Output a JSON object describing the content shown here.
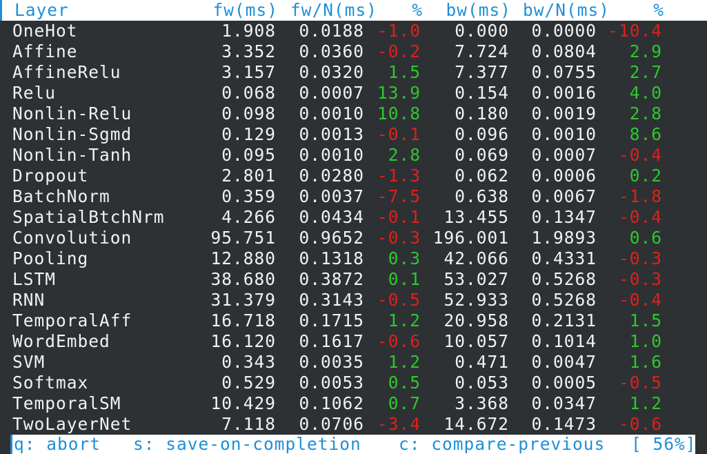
{
  "header": {
    "layer": "Layer",
    "fw": "fw(ms)",
    "fwn": "fw/N(ms)",
    "pct1": "%",
    "bw": "bw(ms)",
    "bwn": "bw/N(ms)",
    "pct2": "%"
  },
  "rows": [
    {
      "layer": "OneHot",
      "fw": "1.908",
      "fwn": "0.0188",
      "pct1": "-1.0",
      "bw": "0.000",
      "bwn": "0.0000",
      "pct2": "-10.4"
    },
    {
      "layer": "Affine",
      "fw": "3.352",
      "fwn": "0.0360",
      "pct1": "-0.2",
      "bw": "7.724",
      "bwn": "0.0804",
      "pct2": "2.9"
    },
    {
      "layer": "AffineRelu",
      "fw": "3.157",
      "fwn": "0.0320",
      "pct1": "1.5",
      "bw": "7.377",
      "bwn": "0.0755",
      "pct2": "2.7"
    },
    {
      "layer": "Relu",
      "fw": "0.068",
      "fwn": "0.0007",
      "pct1": "13.9",
      "bw": "0.154",
      "bwn": "0.0016",
      "pct2": "4.0"
    },
    {
      "layer": "Nonlin-Relu",
      "fw": "0.098",
      "fwn": "0.0010",
      "pct1": "10.8",
      "bw": "0.180",
      "bwn": "0.0019",
      "pct2": "2.8"
    },
    {
      "layer": "Nonlin-Sgmd",
      "fw": "0.129",
      "fwn": "0.0013",
      "pct1": "-0.1",
      "bw": "0.096",
      "bwn": "0.0010",
      "pct2": "8.6"
    },
    {
      "layer": "Nonlin-Tanh",
      "fw": "0.095",
      "fwn": "0.0010",
      "pct1": "2.8",
      "bw": "0.069",
      "bwn": "0.0007",
      "pct2": "-0.4"
    },
    {
      "layer": "Dropout",
      "fw": "2.801",
      "fwn": "0.0280",
      "pct1": "-1.3",
      "bw": "0.062",
      "bwn": "0.0006",
      "pct2": "0.2"
    },
    {
      "layer": "BatchNorm",
      "fw": "0.359",
      "fwn": "0.0037",
      "pct1": "-7.5",
      "bw": "0.638",
      "bwn": "0.0067",
      "pct2": "-1.8"
    },
    {
      "layer": "SpatialBtchNrm",
      "fw": "4.266",
      "fwn": "0.0434",
      "pct1": "-0.1",
      "bw": "13.455",
      "bwn": "0.1347",
      "pct2": "-0.4"
    },
    {
      "layer": "Convolution",
      "fw": "95.751",
      "fwn": "0.9652",
      "pct1": "-0.3",
      "bw": "196.001",
      "bwn": "1.9893",
      "pct2": "0.6"
    },
    {
      "layer": "Pooling",
      "fw": "12.880",
      "fwn": "0.1318",
      "pct1": "0.3",
      "bw": "42.066",
      "bwn": "0.4331",
      "pct2": "-0.3"
    },
    {
      "layer": "LSTM",
      "fw": "38.680",
      "fwn": "0.3872",
      "pct1": "0.1",
      "bw": "53.027",
      "bwn": "0.5268",
      "pct2": "-0.3"
    },
    {
      "layer": "RNN",
      "fw": "31.379",
      "fwn": "0.3143",
      "pct1": "-0.5",
      "bw": "52.933",
      "bwn": "0.5268",
      "pct2": "-0.4"
    },
    {
      "layer": "TemporalAff",
      "fw": "16.718",
      "fwn": "0.1715",
      "pct1": "1.2",
      "bw": "20.958",
      "bwn": "0.2131",
      "pct2": "1.5"
    },
    {
      "layer": "WordEmbed",
      "fw": "16.120",
      "fwn": "0.1617",
      "pct1": "-0.6",
      "bw": "10.057",
      "bwn": "0.1014",
      "pct2": "1.0"
    },
    {
      "layer": "SVM",
      "fw": "0.343",
      "fwn": "0.0035",
      "pct1": "1.2",
      "bw": "0.471",
      "bwn": "0.0047",
      "pct2": "1.6"
    },
    {
      "layer": "Softmax",
      "fw": "0.529",
      "fwn": "0.0053",
      "pct1": "0.5",
      "bw": "0.053",
      "bwn": "0.0005",
      "pct2": "-0.5"
    },
    {
      "layer": "TemporalSM",
      "fw": "10.429",
      "fwn": "0.1062",
      "pct1": "0.7",
      "bw": "3.368",
      "bwn": "0.0347",
      "pct2": "1.2"
    },
    {
      "layer": "TwoLayerNet",
      "fw": "7.118",
      "fwn": "0.0706",
      "pct1": "-3.4",
      "bw": "14.672",
      "bwn": "0.1473",
      "pct2": "-0.6"
    }
  ],
  "status": {
    "abort": "q: abort",
    "save": "s: save-on-completion",
    "compare": "c: compare-previous",
    "progress": "[ 56%]"
  },
  "colors": {
    "background": "#2d3134",
    "text": "#f2f2f2",
    "accent": "#1f8fd6",
    "positive": "#2ec82e",
    "negative": "#e0201c"
  }
}
